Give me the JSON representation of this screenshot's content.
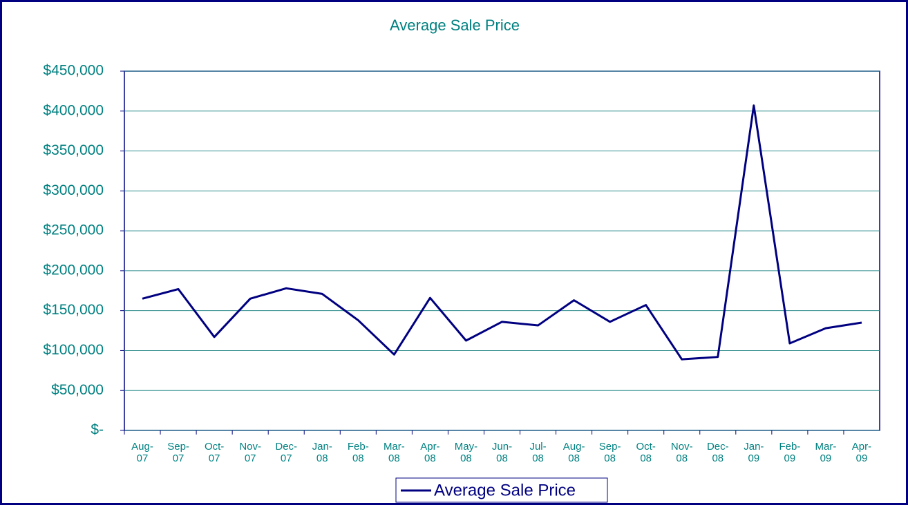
{
  "chart_data": {
    "type": "line",
    "title": "Average Sale Price",
    "categories": [
      "Aug-07",
      "Sep-07",
      "Oct-07",
      "Nov-07",
      "Dec-07",
      "Jan-08",
      "Feb-08",
      "Mar-08",
      "Apr-08",
      "May-08",
      "Jun-08",
      "Jul-08",
      "Aug-08",
      "Sep-08",
      "Oct-08",
      "Nov-08",
      "Dec-08",
      "Jan-09",
      "Feb-09",
      "Mar-09",
      "Apr-09"
    ],
    "series": [
      {
        "name": "Average Sale Price",
        "color": "#000080",
        "values": [
          165000,
          177000,
          117000,
          165000,
          178000,
          171000,
          138000,
          95000,
          166000,
          112500,
          136000,
          131500,
          163000,
          136000,
          157000,
          89000,
          92000,
          407000,
          109000,
          128000,
          135000
        ]
      }
    ],
    "ylim": [
      0,
      450000
    ],
    "yticks": [
      {
        "value": 0,
        "label": "$-"
      },
      {
        "value": 50000,
        "label": "$50,000"
      },
      {
        "value": 100000,
        "label": "$100,000"
      },
      {
        "value": 150000,
        "label": "$150,000"
      },
      {
        "value": 200000,
        "label": "$200,000"
      },
      {
        "value": 250000,
        "label": "$250,000"
      },
      {
        "value": 300000,
        "label": "$300,000"
      },
      {
        "value": 350000,
        "label": "$350,000"
      },
      {
        "value": 400000,
        "label": "$400,000"
      },
      {
        "value": 450000,
        "label": "$450,000"
      }
    ],
    "grid": true
  }
}
